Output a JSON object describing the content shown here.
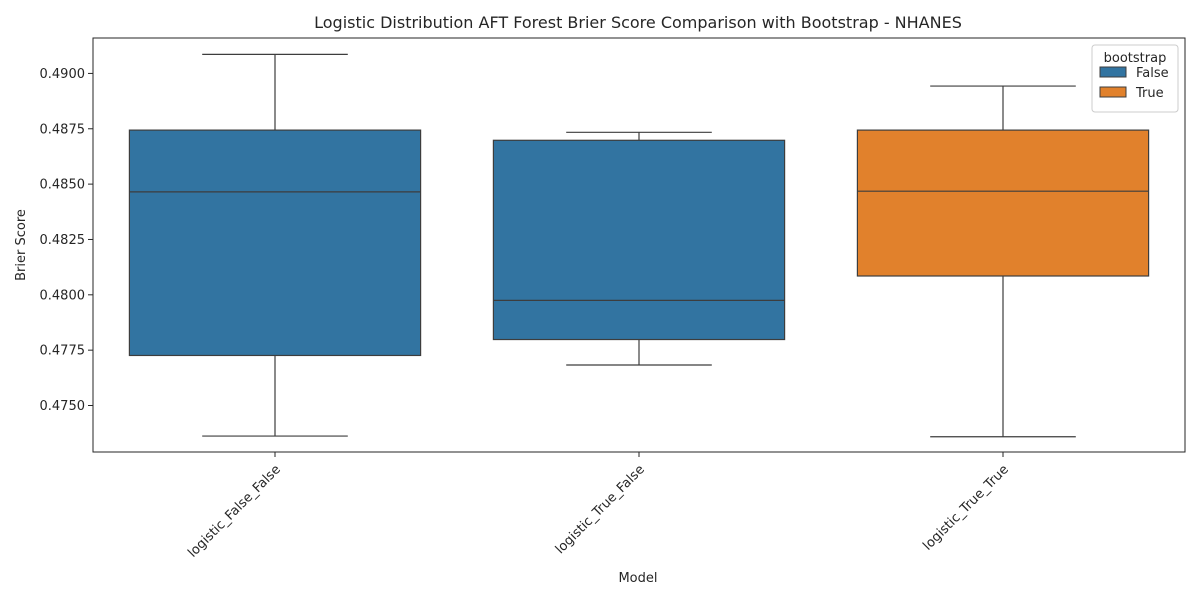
{
  "chart_data": {
    "type": "box",
    "title": "Logistic Distribution AFT Forest Brier Score Comparison with Bootstrap  - NHANES",
    "xlabel": "Model",
    "ylabel": "Brier Score",
    "ylim": [
      0.4729,
      0.4916
    ],
    "yticks": [
      "0.4750",
      "0.4775",
      "0.4800",
      "0.4825",
      "0.4850",
      "0.4875",
      "0.4900"
    ],
    "legend": {
      "title": "bootstrap",
      "placement": "top-right",
      "entries": [
        {
          "label": "False",
          "color": "#3274a1"
        },
        {
          "label": "True",
          "color": "#e1812c"
        }
      ]
    },
    "boxes": [
      {
        "category": "logistic_False_False",
        "bootstrap": "False",
        "whisker_low": 0.47362,
        "q1": 0.47726,
        "median": 0.48465,
        "q3": 0.48744,
        "whisker_high": 0.49086
      },
      {
        "category": "logistic_True_False",
        "bootstrap": "False",
        "whisker_low": 0.47683,
        "q1": 0.47798,
        "median": 0.47975,
        "q3": 0.48698,
        "whisker_high": 0.48734
      },
      {
        "category": "logistic_True_True",
        "bootstrap": "True",
        "whisker_low": 0.47359,
        "q1": 0.48085,
        "median": 0.48468,
        "q3": 0.48744,
        "whisker_high": 0.48943
      }
    ]
  }
}
